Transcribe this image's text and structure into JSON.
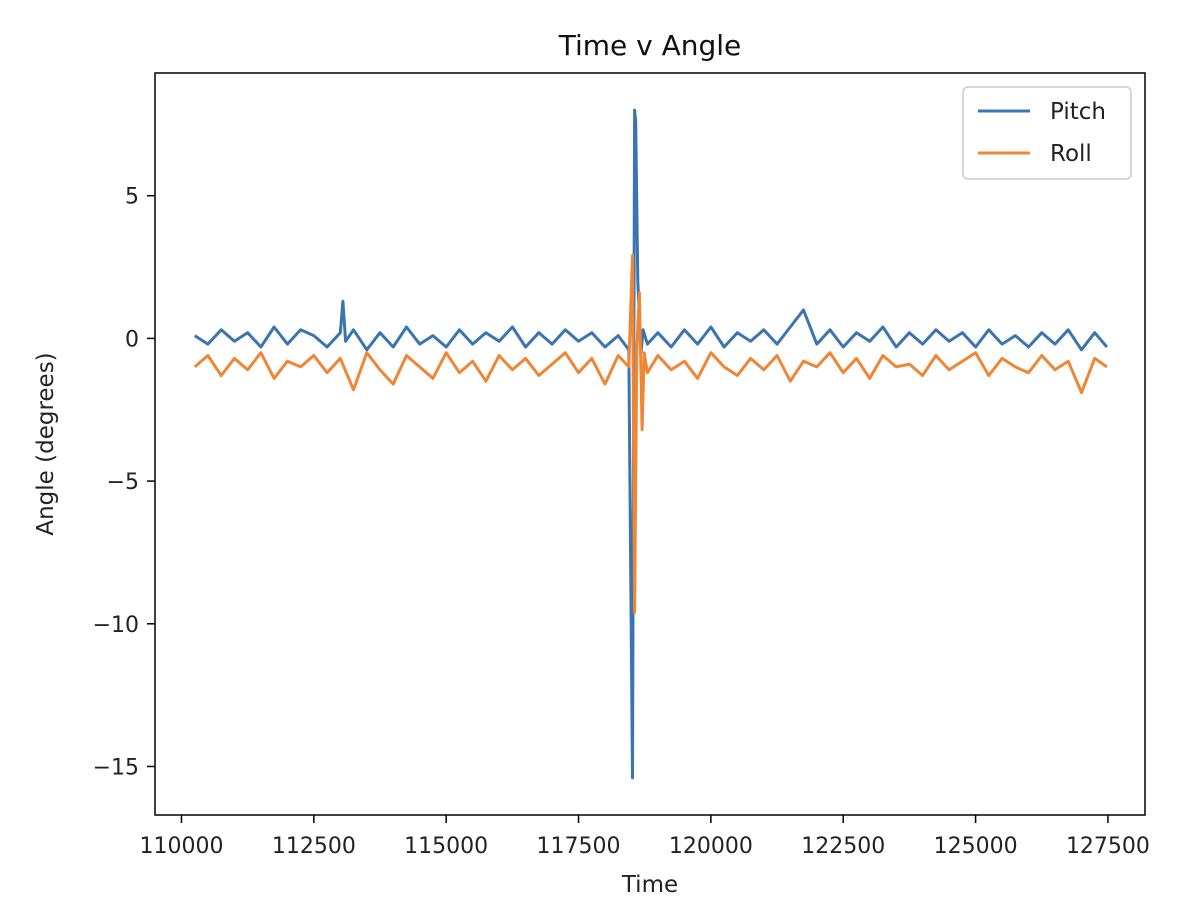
{
  "chart_data": {
    "type": "line",
    "title": "Time v Angle",
    "xlabel": "Time",
    "ylabel": "Angle (degrees)",
    "xlim": [
      109500,
      128200
    ],
    "ylim": [
      -16.7,
      9.3
    ],
    "xticks": [
      110000,
      112500,
      115000,
      117500,
      120000,
      122500,
      125000,
      127500
    ],
    "xtick_labels": [
      "110000",
      "112500",
      "115000",
      "117500",
      "120000",
      "122500",
      "125000",
      "127500"
    ],
    "yticks": [
      5,
      0,
      -5,
      -10,
      -15
    ],
    "ytick_labels": [
      "5",
      "0",
      "−5",
      "−10",
      "−15"
    ],
    "grid": false,
    "legend_position": "top-right",
    "series": [
      {
        "name": "Pitch",
        "color": "#3b75af",
        "x": [
          110250,
          110500,
          110750,
          111000,
          111250,
          111500,
          111750,
          112000,
          112250,
          112500,
          112750,
          113000,
          113050,
          113100,
          113250,
          113500,
          113750,
          114000,
          114250,
          114500,
          114750,
          115000,
          115250,
          115500,
          115750,
          116000,
          116250,
          116500,
          116750,
          117000,
          117250,
          117500,
          117750,
          118000,
          118250,
          118450,
          118520,
          118560,
          118580,
          118620,
          118680,
          118720,
          118800,
          119000,
          119250,
          119500,
          119750,
          120000,
          120250,
          120500,
          120750,
          121000,
          121250,
          121500,
          121750,
          122000,
          122250,
          122500,
          122750,
          123000,
          123250,
          123500,
          123750,
          124000,
          124250,
          124500,
          124750,
          125000,
          125250,
          125500,
          125750,
          126000,
          126250,
          126500,
          126750,
          127000,
          127250,
          127480
        ],
        "values": [
          0.1,
          -0.2,
          0.3,
          -0.1,
          0.2,
          -0.3,
          0.4,
          -0.2,
          0.3,
          0.1,
          -0.3,
          0.2,
          1.3,
          -0.1,
          0.3,
          -0.4,
          0.2,
          -0.3,
          0.4,
          -0.2,
          0.1,
          -0.3,
          0.3,
          -0.2,
          0.2,
          -0.1,
          0.4,
          -0.3,
          0.2,
          -0.2,
          0.3,
          -0.1,
          0.2,
          -0.3,
          0.1,
          -0.4,
          -15.4,
          8.0,
          7.6,
          2.0,
          -0.5,
          0.3,
          -0.2,
          0.2,
          -0.3,
          0.3,
          -0.2,
          0.4,
          -0.3,
          0.2,
          -0.1,
          0.3,
          -0.2,
          0.4,
          1.0,
          -0.2,
          0.3,
          -0.3,
          0.2,
          -0.1,
          0.4,
          -0.3,
          0.2,
          -0.2,
          0.3,
          -0.1,
          0.2,
          -0.3,
          0.3,
          -0.2,
          0.1,
          -0.3,
          0.2,
          -0.2,
          0.3,
          -0.4,
          0.2,
          -0.3
        ]
      },
      {
        "name": "Roll",
        "color": "#ef8636",
        "x": [
          110250,
          110500,
          110750,
          111000,
          111250,
          111500,
          111750,
          112000,
          112250,
          112500,
          112750,
          113000,
          113250,
          113500,
          113750,
          114000,
          114250,
          114500,
          114750,
          115000,
          115250,
          115500,
          115750,
          116000,
          116250,
          116500,
          116750,
          117000,
          117250,
          117500,
          117750,
          118000,
          118250,
          118450,
          118520,
          118560,
          118600,
          118650,
          118700,
          118740,
          118800,
          119000,
          119250,
          119500,
          119750,
          120000,
          120250,
          120500,
          120750,
          121000,
          121250,
          121500,
          121750,
          122000,
          122250,
          122500,
          122750,
          123000,
          123250,
          123500,
          123750,
          124000,
          124250,
          124500,
          124750,
          125000,
          125250,
          125500,
          125750,
          126000,
          126250,
          126500,
          126750,
          127000,
          127250,
          127480
        ],
        "values": [
          -1.0,
          -0.6,
          -1.3,
          -0.7,
          -1.1,
          -0.5,
          -1.4,
          -0.8,
          -1.0,
          -0.6,
          -1.2,
          -0.7,
          -1.8,
          -0.5,
          -1.1,
          -1.6,
          -0.6,
          -1.0,
          -1.4,
          -0.5,
          -1.2,
          -0.8,
          -1.5,
          -0.6,
          -1.1,
          -0.7,
          -1.3,
          -0.9,
          -0.5,
          -1.2,
          -0.7,
          -1.6,
          -0.6,
          -1.0,
          2.9,
          -9.6,
          -0.4,
          1.6,
          -3.2,
          -0.5,
          -1.2,
          -0.6,
          -1.1,
          -0.8,
          -1.4,
          -0.5,
          -1.0,
          -1.3,
          -0.7,
          -1.1,
          -0.6,
          -1.5,
          -0.8,
          -1.0,
          -0.5,
          -1.2,
          -0.7,
          -1.4,
          -0.6,
          -1.0,
          -0.9,
          -1.3,
          -0.6,
          -1.1,
          -0.8,
          -0.5,
          -1.3,
          -0.7,
          -1.0,
          -1.2,
          -0.6,
          -1.1,
          -0.8,
          -1.9,
          -0.7,
          -1.0
        ]
      }
    ]
  }
}
